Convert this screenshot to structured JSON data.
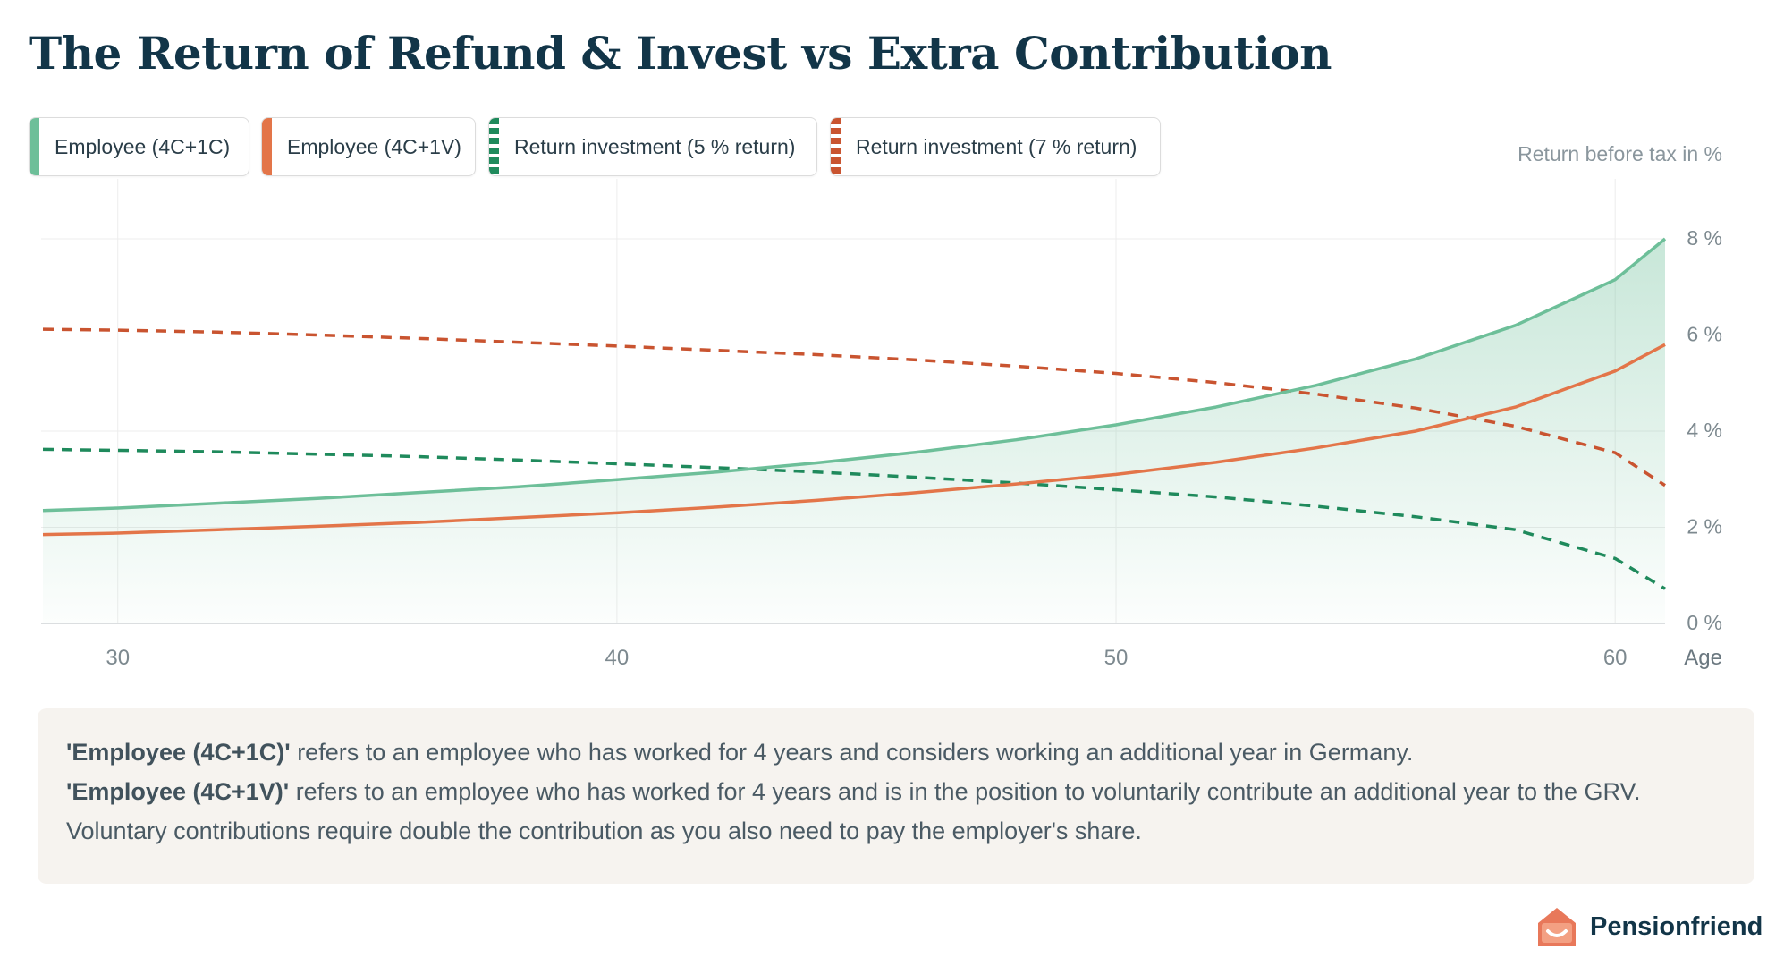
{
  "title": "The Return of Refund & Invest vs Extra Contribution",
  "legend": [
    {
      "label": "Employee (4C+1C)",
      "color": "#6dbf99",
      "style": "solid"
    },
    {
      "label": "Employee (4C+1V)",
      "color": "#e37549",
      "style": "solid"
    },
    {
      "label": "Return investment (5 % return)",
      "color": "#1f8a5c",
      "style": "dashed"
    },
    {
      "label": "Return investment (7 % return)",
      "color": "#c95430",
      "style": "dashed"
    }
  ],
  "note": {
    "line1_bold": "'Employee (4C+1C)'",
    "line1_text": " refers to an employee who has worked for 4 years and considers working an additional year in Germany.",
    "line2_bold": "'Employee (4C+1V)'",
    "line2_text": " refers to an employee who has worked for 4 years and is in the position to voluntarily contribute an additional year to the GRV.",
    "line3_text": "Voluntary contributions require double the contribution as you also need to pay the employer's share."
  },
  "brand": {
    "name": "Pensionfriend",
    "color": "#e8785a"
  },
  "chart_data": {
    "type": "line",
    "title": "The Return of Refund & Invest vs Extra Contribution",
    "ylabel": "Return before tax in %",
    "xlabel": "Age",
    "xlim": [
      28.5,
      61
    ],
    "ylim": [
      0,
      8
    ],
    "x_ticks": [
      30,
      40,
      50,
      60
    ],
    "x_tick_labels": [
      "30",
      "40",
      "50",
      "60"
    ],
    "y_ticks": [
      0,
      2,
      4,
      6,
      8
    ],
    "y_tick_labels": [
      "0 %",
      "2 %",
      "4 %",
      "6 %",
      "8 %"
    ],
    "grid": true,
    "series": [
      {
        "name": "Employee (4C+1C)",
        "style": "solid",
        "color": "#6dbf99",
        "fill": true,
        "x": [
          28.5,
          30,
          32,
          34,
          36,
          38,
          40,
          42,
          44,
          46,
          48,
          50,
          52,
          54,
          56,
          58,
          60,
          61
        ],
        "y": [
          2.35,
          2.4,
          2.5,
          2.6,
          2.72,
          2.84,
          2.99,
          3.15,
          3.34,
          3.56,
          3.82,
          4.13,
          4.5,
          4.95,
          5.5,
          6.2,
          7.15,
          8.0
        ]
      },
      {
        "name": "Employee (4C+1V)",
        "style": "solid",
        "color": "#e37549",
        "x": [
          28.5,
          30,
          32,
          34,
          36,
          38,
          40,
          42,
          44,
          46,
          48,
          50,
          52,
          54,
          56,
          58,
          60,
          61
        ],
        "y": [
          1.85,
          1.88,
          1.95,
          2.02,
          2.1,
          2.2,
          2.3,
          2.42,
          2.56,
          2.72,
          2.9,
          3.1,
          3.35,
          3.65,
          4.0,
          4.5,
          5.25,
          5.8
        ]
      },
      {
        "name": "Return investment (5 % return)",
        "style": "dashed",
        "color": "#1f8a5c",
        "x": [
          28.5,
          30,
          32,
          34,
          36,
          38,
          40,
          42,
          44,
          46,
          48,
          50,
          52,
          54,
          56,
          58,
          60,
          61
        ],
        "y": [
          3.62,
          3.6,
          3.57,
          3.52,
          3.47,
          3.4,
          3.32,
          3.24,
          3.15,
          3.04,
          2.92,
          2.78,
          2.63,
          2.44,
          2.22,
          1.95,
          1.35,
          0.72
        ]
      },
      {
        "name": "Return investment (7 % return)",
        "style": "dashed",
        "color": "#c95430",
        "x": [
          28.5,
          30,
          32,
          34,
          36,
          38,
          40,
          42,
          44,
          46,
          48,
          50,
          52,
          54,
          56,
          58,
          60,
          61
        ],
        "y": [
          6.12,
          6.1,
          6.06,
          6.0,
          5.93,
          5.85,
          5.77,
          5.68,
          5.59,
          5.48,
          5.35,
          5.2,
          5.01,
          4.77,
          4.48,
          4.1,
          3.55,
          2.87
        ]
      }
    ]
  }
}
